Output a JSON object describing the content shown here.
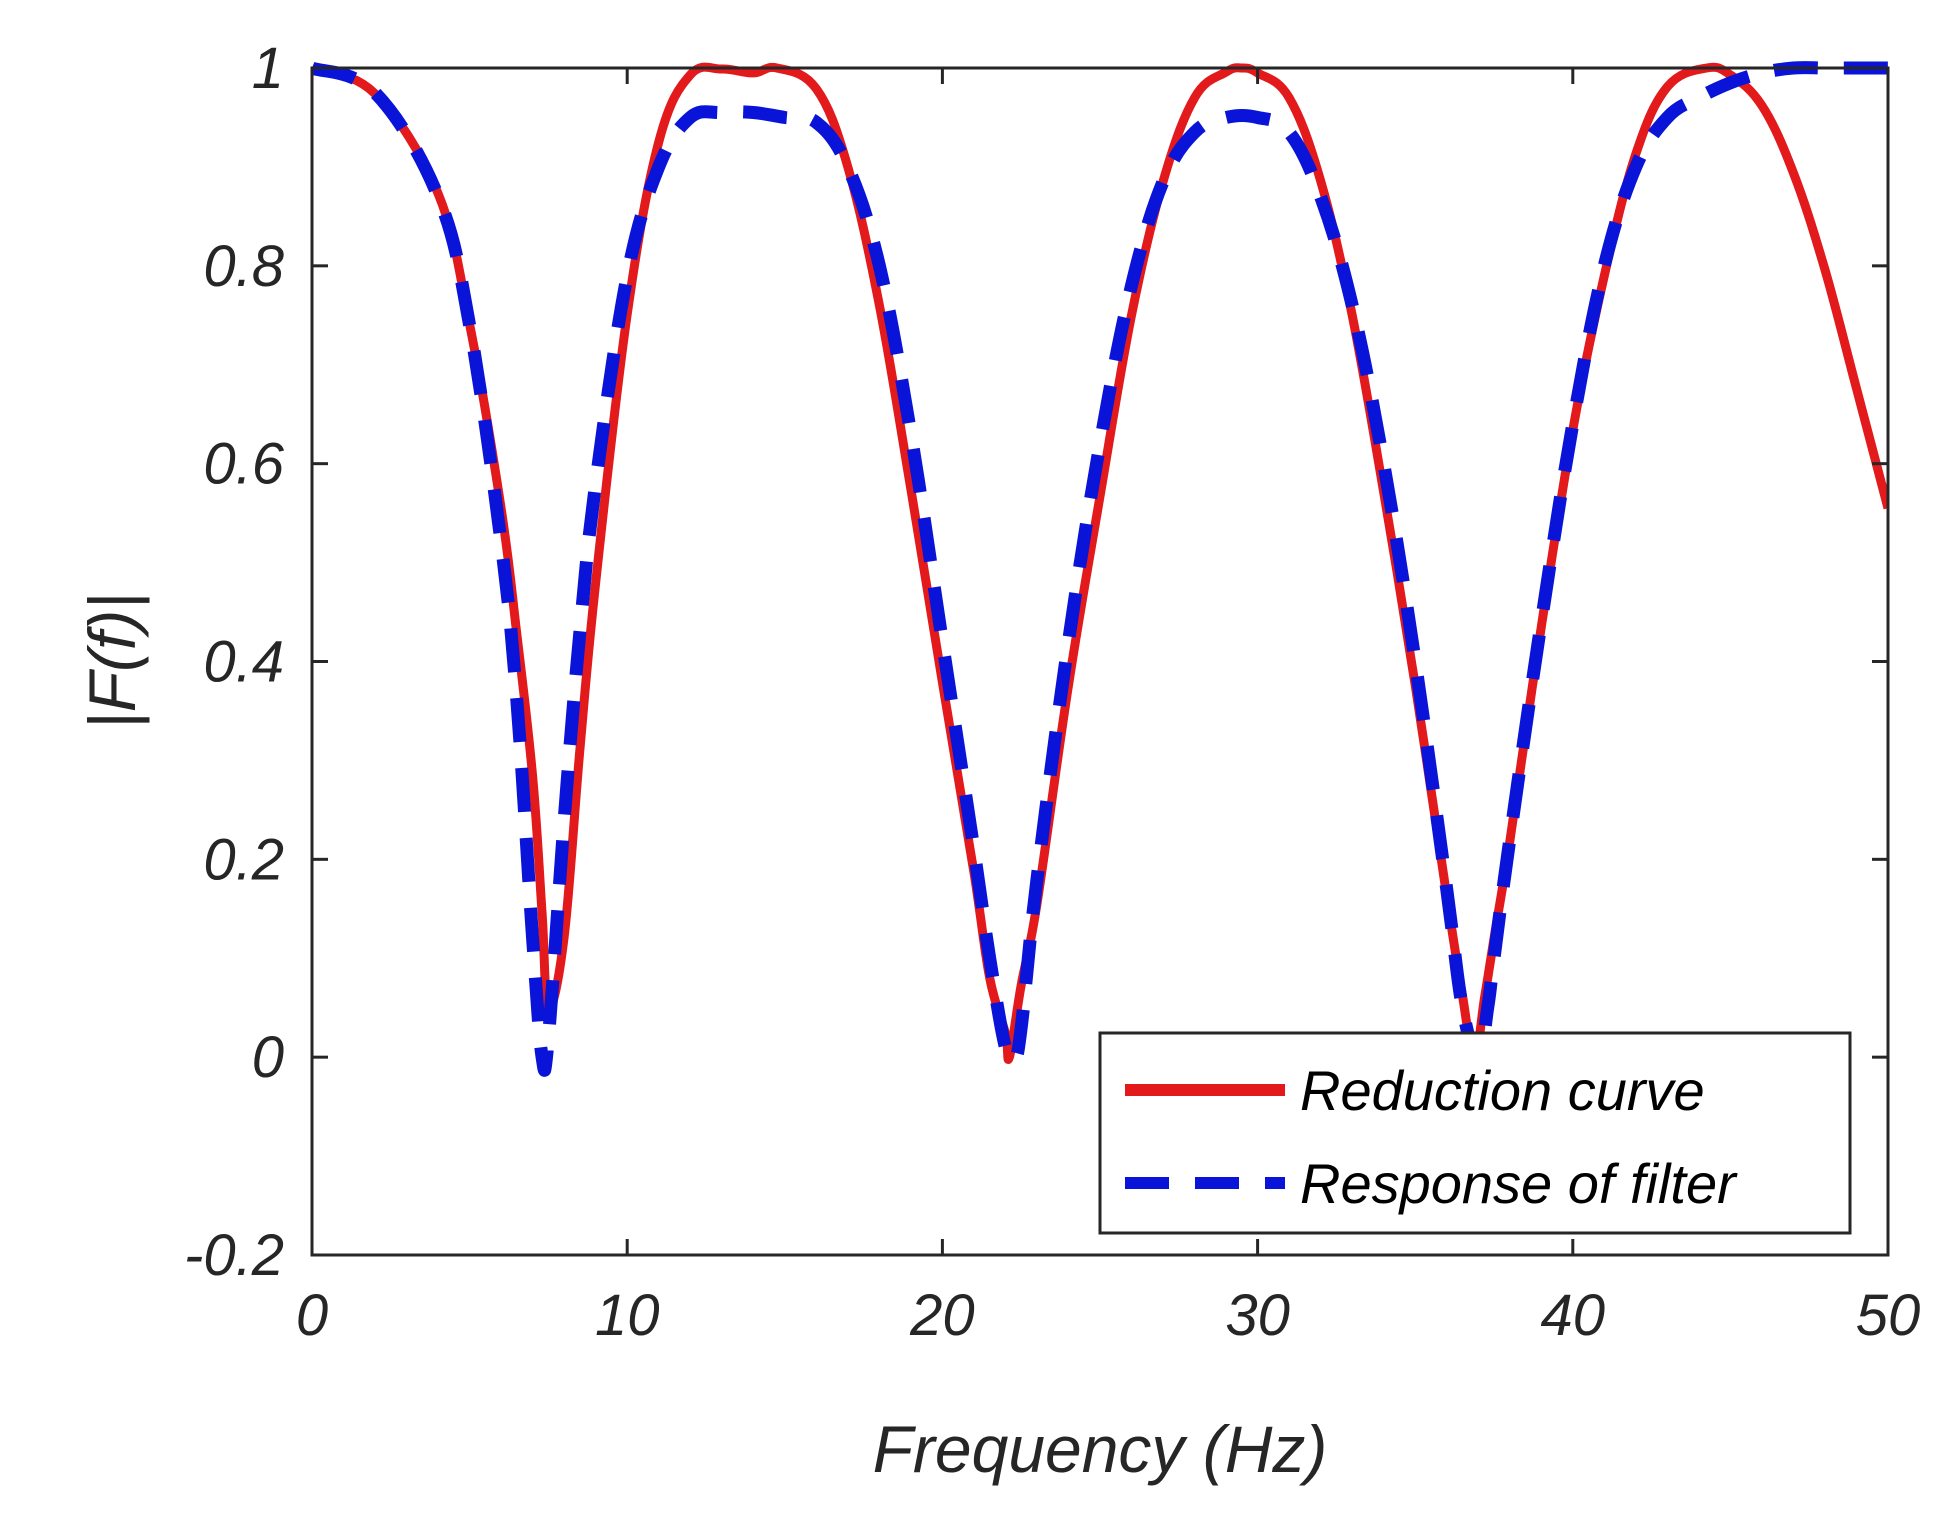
{
  "chart_data": {
    "type": "line",
    "title": "",
    "xlabel": "Frequency (Hz)",
    "ylabel": "|F(f)|",
    "xlim": [
      0,
      50
    ],
    "ylim": [
      -0.2,
      1
    ],
    "xticks": [
      0,
      10,
      20,
      30,
      40,
      50
    ],
    "yticks": [
      -0.2,
      0,
      0.2,
      0.4,
      0.6,
      0.8,
      1
    ],
    "xtick_labels": [
      "0",
      "10",
      "20",
      "30",
      "40",
      "50"
    ],
    "ytick_labels": [
      "-0.2",
      "0",
      "0.2",
      "0.4",
      "0.6",
      "0.8",
      "1"
    ],
    "grid": false,
    "legend_position": "bottom-right",
    "series": [
      {
        "name": "Reduction curve",
        "color": "#e31a1c",
        "style": "solid",
        "x": [
          0,
          2,
          4,
          5,
          6,
          6.5,
          7,
          7.3,
          7.5,
          8,
          8.5,
          9,
          10,
          11,
          12,
          13,
          14,
          14.75,
          16,
          17,
          18,
          19,
          20,
          21,
          21.5,
          22,
          22.125,
          22.5,
          23,
          24,
          25,
          26,
          27,
          28,
          29,
          29.5,
          30,
          31,
          32,
          33,
          34,
          35,
          36,
          36.5,
          36.875,
          37.2,
          37.5,
          38,
          39,
          40,
          41,
          42,
          43,
          44.25,
          45,
          46,
          47,
          48,
          49,
          50
        ],
        "values": [
          1.0,
          0.974,
          0.873,
          0.741,
          0.555,
          0.427,
          0.284,
          0.145,
          0.05,
          0.122,
          0.311,
          0.48,
          0.751,
          0.925,
          0.993,
          0.999,
          0.995,
          1.0,
          0.979,
          0.9,
          0.76,
          0.574,
          0.379,
          0.187,
          0.08,
          0.024,
          0.0,
          0.073,
          0.155,
          0.376,
          0.567,
          0.75,
          0.885,
          0.97,
          0.996,
          1.0,
          0.995,
          0.97,
          0.886,
          0.75,
          0.571,
          0.376,
          0.163,
          0.062,
          0.0,
          0.06,
          0.12,
          0.218,
          0.435,
          0.634,
          0.79,
          0.913,
          0.981,
          1.0,
          0.993,
          0.962,
          0.894,
          0.796,
          0.676,
          0.555
        ]
      },
      {
        "name": "Response of filter",
        "color": "#0a14d9",
        "style": "dashed",
        "x": [
          0,
          2,
          4,
          5,
          6,
          6.5,
          7,
          7.3,
          7.5,
          8,
          8.5,
          9,
          10,
          11,
          12,
          13,
          14,
          15,
          16,
          17,
          18,
          19,
          20,
          21,
          21.5,
          22,
          22.3,
          22.5,
          23,
          24,
          25,
          26,
          27,
          28,
          29,
          30,
          31,
          32,
          33,
          34,
          35,
          36,
          36.5,
          37,
          37.3,
          37.5,
          38,
          39,
          40,
          41,
          42,
          43,
          44,
          45,
          46,
          47,
          48,
          49,
          50
        ],
        "values": [
          1.0,
          0.975,
          0.87,
          0.74,
          0.52,
          0.36,
          0.12,
          0.0,
          0.02,
          0.24,
          0.43,
          0.58,
          0.79,
          0.9,
          0.95,
          0.955,
          0.955,
          0.95,
          0.945,
          0.9,
          0.8,
          0.63,
          0.42,
          0.21,
          0.1,
          0.01,
          0.0,
          0.03,
          0.18,
          0.42,
          0.62,
          0.78,
          0.885,
          0.935,
          0.95,
          0.95,
          0.935,
          0.87,
          0.76,
          0.6,
          0.4,
          0.17,
          0.05,
          0.0,
          0.05,
          0.1,
          0.22,
          0.44,
          0.64,
          0.8,
          0.9,
          0.95,
          0.97,
          0.985,
          0.995,
          1.0,
          1.0,
          1.0,
          1.0
        ]
      }
    ]
  }
}
